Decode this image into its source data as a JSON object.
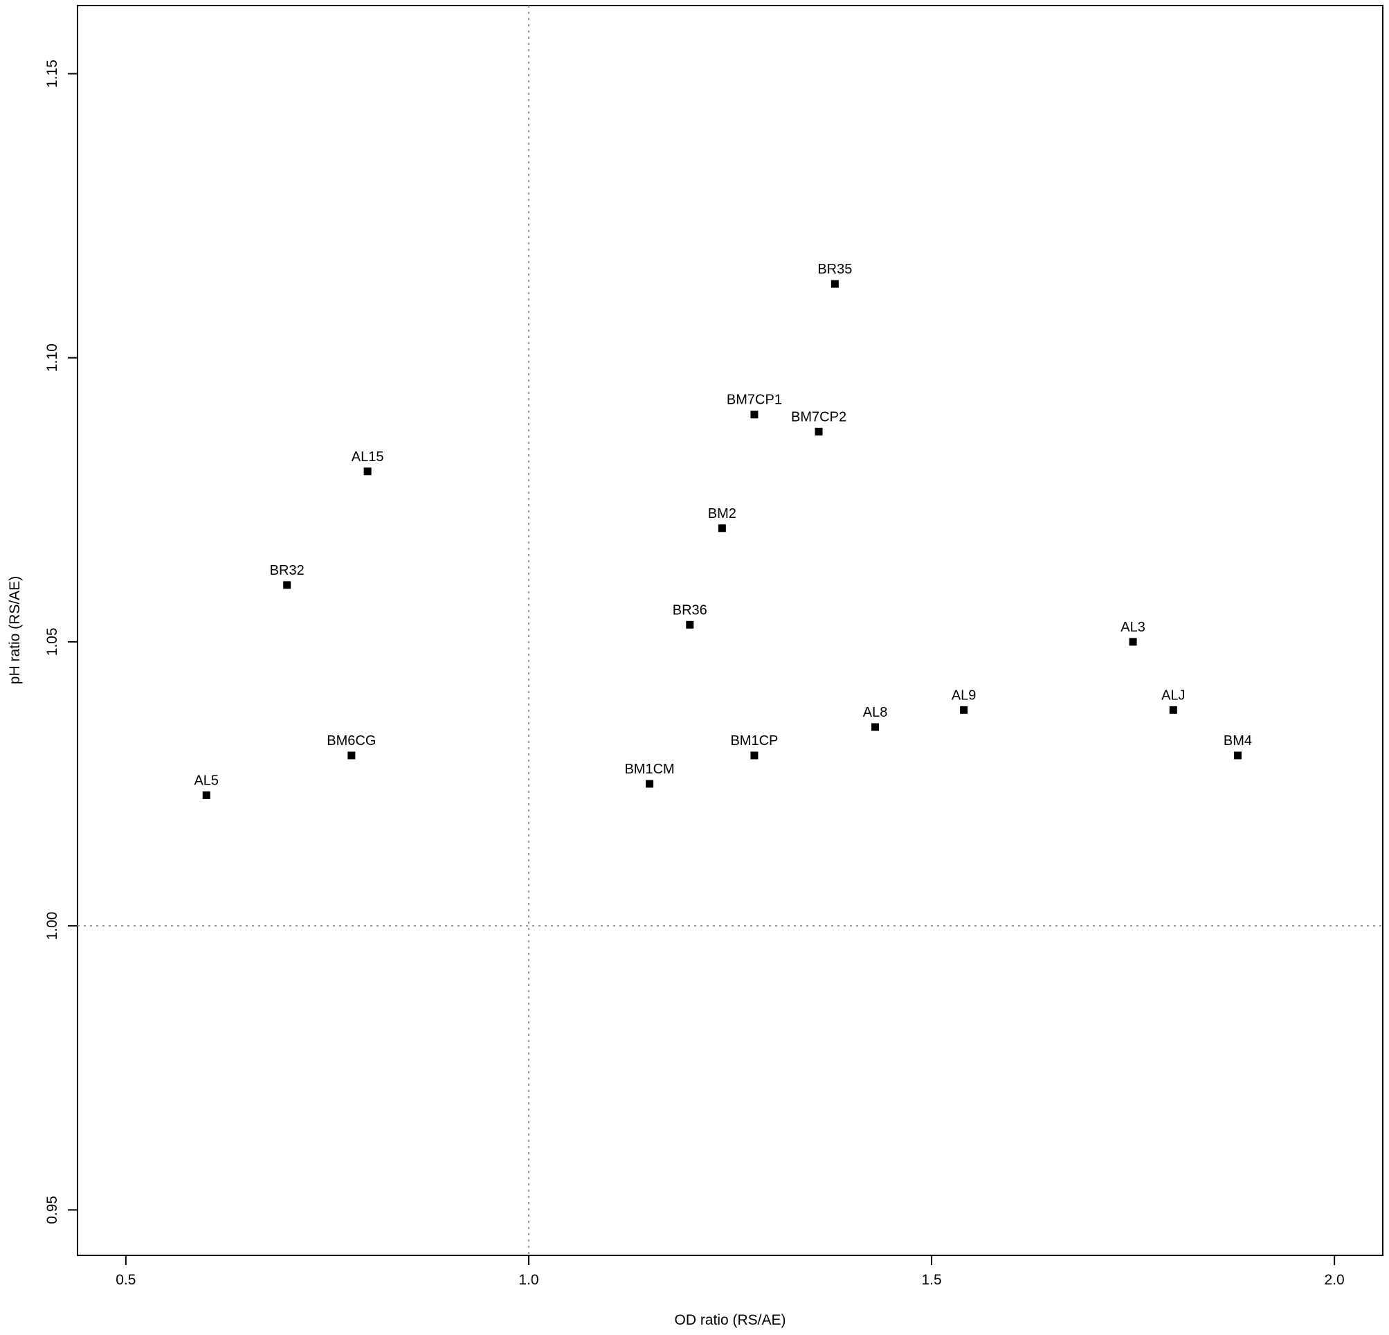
{
  "chart_data": {
    "type": "scatter",
    "title": "",
    "xlabel": "OD ratio (RS/AE)",
    "ylabel": "pH ratio (RS/AE)",
    "xlim": [
      0.44,
      2.06
    ],
    "ylim": [
      0.942,
      1.162
    ],
    "xticks": [
      0.5,
      1.0,
      1.5,
      2.0
    ],
    "xtick_labels": [
      "0.5",
      "1.0",
      "1.5",
      "2.0"
    ],
    "yticks": [
      0.95,
      1.0,
      1.05,
      1.1,
      1.15
    ],
    "ytick_labels": [
      "0.95",
      "1.00",
      "1.05",
      "1.10",
      "1.15"
    ],
    "reference_lines": {
      "x": 1.0,
      "y": 1.0,
      "style": "dotted",
      "color": "#999999"
    },
    "grid": false,
    "marker": "square",
    "marker_color": "#000000",
    "points": [
      {
        "label": "AL5",
        "x": 0.6,
        "y": 1.023
      },
      {
        "label": "BR32",
        "x": 0.7,
        "y": 1.06
      },
      {
        "label": "BM6CG",
        "x": 0.78,
        "y": 1.03
      },
      {
        "label": "AL15",
        "x": 0.8,
        "y": 1.08
      },
      {
        "label": "BM1CM",
        "x": 1.15,
        "y": 1.025
      },
      {
        "label": "BR36",
        "x": 1.2,
        "y": 1.053
      },
      {
        "label": "BM2",
        "x": 1.24,
        "y": 1.07
      },
      {
        "label": "BM7CP1",
        "x": 1.28,
        "y": 1.09
      },
      {
        "label": "BM1CP",
        "x": 1.28,
        "y": 1.03
      },
      {
        "label": "BM7CP2",
        "x": 1.36,
        "y": 1.087
      },
      {
        "label": "BR35",
        "x": 1.38,
        "y": 1.113
      },
      {
        "label": "AL8",
        "x": 1.43,
        "y": 1.035
      },
      {
        "label": "AL9",
        "x": 1.54,
        "y": 1.038
      },
      {
        "label": "AL3",
        "x": 1.75,
        "y": 1.05
      },
      {
        "label": "ALJ",
        "x": 1.8,
        "y": 1.038
      },
      {
        "label": "BM4",
        "x": 1.88,
        "y": 1.03
      }
    ]
  }
}
